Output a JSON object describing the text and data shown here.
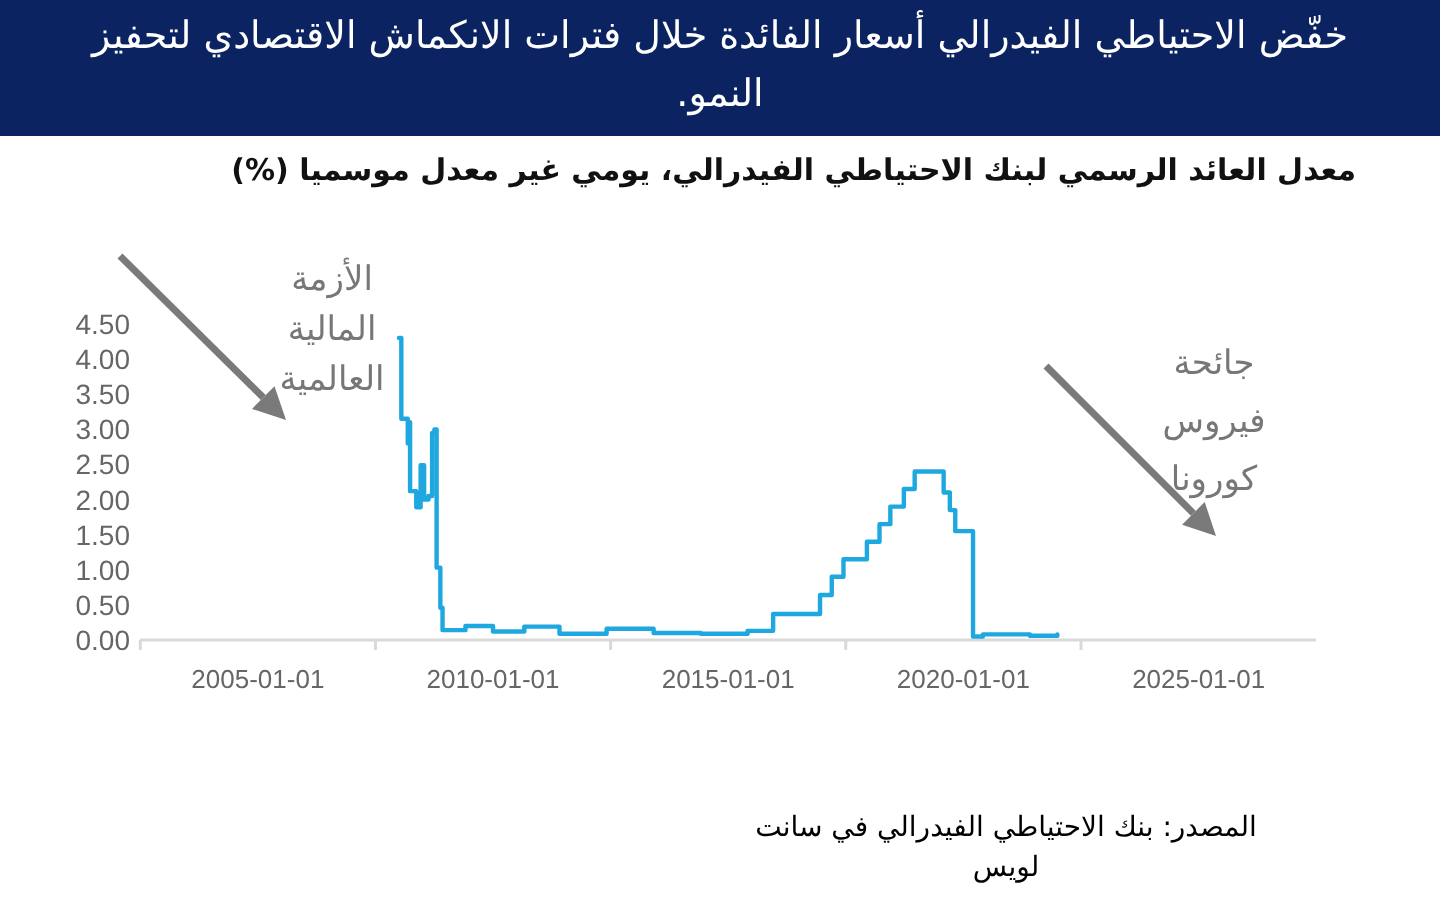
{
  "chart_data": {
    "type": "step",
    "title": "خفّض الاحتياطي الفيدرالي أسعار الفائدة خلال فترات الانكماش الاقتصادي لتحفيز النمو.",
    "subtitle": "معدل العائد الرسمي لبنك الاحتياطي الفيدرالي، يومي غير معدل موسميا (%)",
    "x": [
      "2008-01-02",
      "2008-01-20",
      "2008-03-10",
      "2008-03-15",
      "2008-03-28",
      "2008-05-15",
      "2008-06-18",
      "2008-07-15",
      "2008-08-18",
      "2008-09-15",
      "2008-10-03",
      "2008-10-20",
      "2008-11-18",
      "2008-12-05",
      "2009-06-01",
      "2010-01-01",
      "2010-09-01",
      "2011-06-01",
      "2012-06-01",
      "2013-06-01",
      "2014-06-01",
      "2015-06-01",
      "2015-12-16",
      "2016-12-14",
      "2017-03-15",
      "2017-06-14",
      "2017-12-13",
      "2018-03-21",
      "2018-06-13",
      "2018-09-26",
      "2018-12-19",
      "2019-08-01",
      "2019-09-18",
      "2019-10-30",
      "2020-03-16",
      "2020-06-01",
      "2021-06-01",
      "2021-12-31"
    ],
    "series": [
      {
        "color": "#1fa8e0",
        "values": [
          4.3,
          3.15,
          2.8,
          3.1,
          2.12,
          1.89,
          2.49,
          2.0,
          2.05,
          2.95,
          3.0,
          1.03,
          0.46,
          0.14,
          0.2,
          0.12,
          0.19,
          0.09,
          0.16,
          0.1,
          0.09,
          0.13,
          0.37,
          0.64,
          0.9,
          1.15,
          1.4,
          1.65,
          1.9,
          2.15,
          2.4,
          2.1,
          1.85,
          1.55,
          0.05,
          0.08,
          0.06,
          0.08
        ]
      }
    ],
    "xlim": [
      "2002-07-01",
      "2027-07-01"
    ],
    "xticks": [
      "2005-01-01",
      "2010-01-01",
      "2015-01-01",
      "2020-01-01",
      "2025-01-01"
    ],
    "ylim": [
      0,
      4.5
    ],
    "yticks": [
      {
        "value": 0,
        "label": "0.00"
      },
      {
        "value": 0.5,
        "label": "0.50"
      },
      {
        "value": 1,
        "label": "1.00"
      },
      {
        "value": 1.5,
        "label": "1.50"
      },
      {
        "value": 2,
        "label": "2.00"
      },
      {
        "value": 2.5,
        "label": "2.50"
      },
      {
        "value": 3,
        "label": "3.00"
      },
      {
        "value": 3.5,
        "label": "3.50"
      },
      {
        "value": 4,
        "label": "4.00"
      },
      {
        "value": 4.5,
        "label": "4.50"
      }
    ],
    "annotations": [
      "الأزمة المالية العالمية",
      "جائحة فيروس كورونا",
      "المصدر: بنك الاحتياطي الفيدرالي في سانت لويس"
    ],
    "grid": false,
    "marker": "none",
    "line_style": "solid"
  }
}
